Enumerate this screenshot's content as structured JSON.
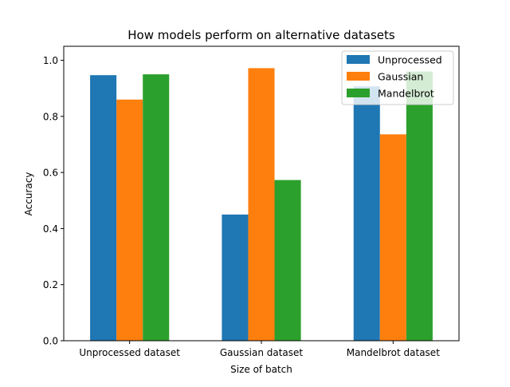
{
  "chart_data": {
    "type": "bar",
    "title": "How models perform on alternative datasets",
    "xlabel": "Size of batch",
    "ylabel": "Accuracy",
    "categories": [
      "Unprocessed dataset",
      "Gaussian dataset",
      "Mandelbrot dataset"
    ],
    "series": [
      {
        "name": "Unprocessed",
        "color": "#1f77b4",
        "values": [
          0.947,
          0.45,
          0.907
        ]
      },
      {
        "name": "Gaussian",
        "color": "#ff7f0e",
        "values": [
          0.86,
          0.972,
          0.736
        ]
      },
      {
        "name": "Mandelbrot",
        "color": "#2ca02c",
        "values": [
          0.95,
          0.573,
          0.96
        ]
      }
    ],
    "ylim": [
      0,
      1.05
    ],
    "yticks": [
      0.0,
      0.2,
      0.4,
      0.6,
      0.8,
      1.0
    ],
    "ytick_labels": [
      "0.0",
      "0.2",
      "0.4",
      "0.6",
      "0.8",
      "1.0"
    ],
    "legend_position": "top-right",
    "grid": false
  }
}
